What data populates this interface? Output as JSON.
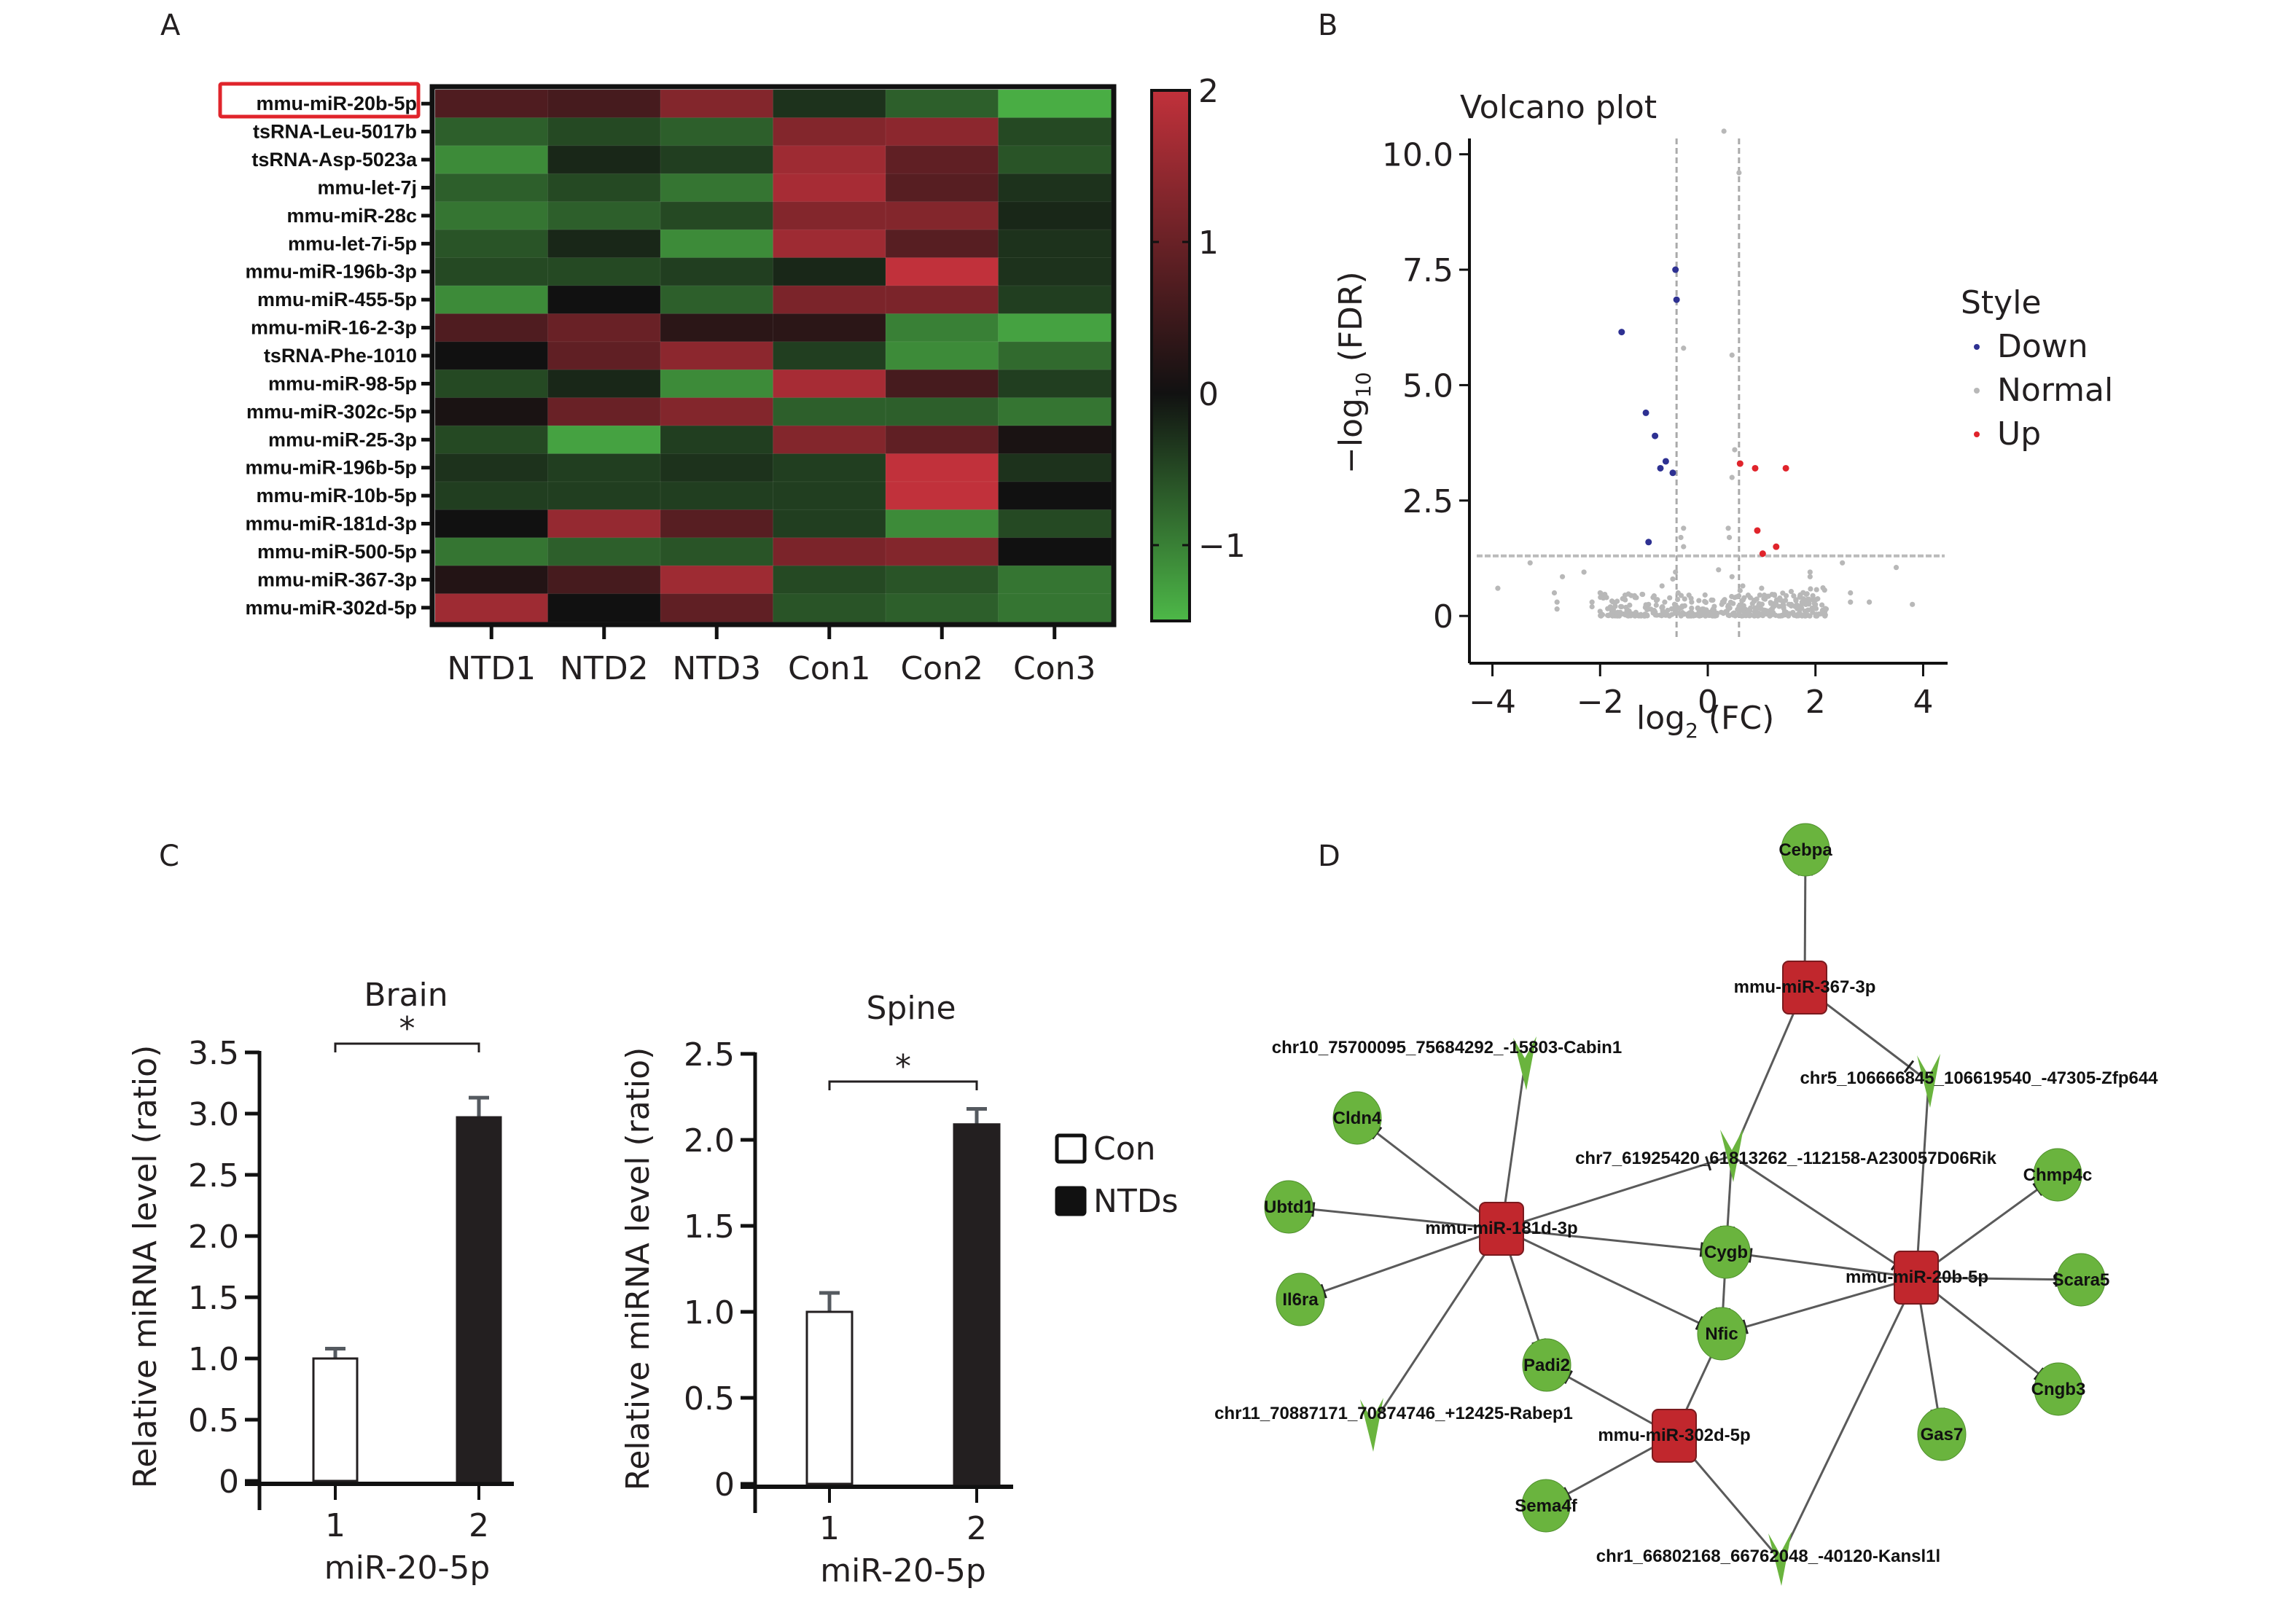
{
  "figure": {
    "panel_letters": [
      "A",
      "B",
      "C",
      "D"
    ]
  },
  "chart_data": [
    {
      "panel": "A",
      "type": "heatmap",
      "title": "",
      "columns": [
        "NTD1",
        "NTD2",
        "NTD3",
        "Con1",
        "Con2",
        "Con3"
      ],
      "rows": [
        "mmu-miR-20b-5p",
        "tsRNA-Leu-5017b",
        "tsRNA-Asp-5023a",
        "mmu-let-7j",
        "mmu-miR-28c",
        "mmu-let-7i-5p",
        "mmu-miR-196b-3p",
        "mmu-miR-455-5p",
        "mmu-miR-16-2-3p",
        "tsRNA-Phe-1010",
        "mmu-miR-98-5p",
        "mmu-miR-302c-5p",
        "mmu-miR-25-3p",
        "mmu-miR-196b-5p",
        "mmu-miR-10b-5p",
        "mmu-miR-181d-3p",
        "mmu-miR-500-5p",
        "mmu-miR-367-3p",
        "mmu-miR-302d-5p"
      ],
      "highlighted_row": "mmu-miR-20b-5p",
      "highlight_color": "#e0242b",
      "values": [
        [
          0.7,
          0.6,
          1.3,
          -0.3,
          -0.7,
          -1.4
        ],
        [
          -0.7,
          -0.5,
          -0.7,
          1.3,
          1.4,
          -0.5
        ],
        [
          -1.1,
          -0.2,
          -0.4,
          1.6,
          0.9,
          -0.6
        ],
        [
          -0.7,
          -0.5,
          -0.9,
          1.7,
          0.8,
          -0.3
        ],
        [
          -0.9,
          -0.7,
          -0.5,
          1.3,
          1.3,
          -0.2
        ],
        [
          -0.6,
          -0.2,
          -1.1,
          1.6,
          0.8,
          -0.3
        ],
        [
          -0.5,
          -0.5,
          -0.4,
          -0.2,
          2.1,
          -0.3
        ],
        [
          -1.1,
          0.0,
          -0.7,
          1.2,
          1.2,
          -0.4
        ],
        [
          0.7,
          1.0,
          0.3,
          0.3,
          -1.0,
          -1.3
        ],
        [
          0.0,
          0.9,
          1.4,
          -0.4,
          -1.1,
          -0.8
        ],
        [
          -0.5,
          -0.2,
          -1.1,
          1.7,
          0.6,
          -0.4
        ],
        [
          0.1,
          1.0,
          1.3,
          -0.7,
          -0.7,
          -0.9
        ],
        [
          -0.5,
          -1.3,
          -0.4,
          1.3,
          0.9,
          0.1
        ],
        [
          -0.3,
          -0.4,
          -0.3,
          -0.4,
          2.1,
          -0.3
        ],
        [
          -0.4,
          -0.4,
          -0.4,
          -0.4,
          2.1,
          0.0
        ],
        [
          0.0,
          1.5,
          0.8,
          -0.4,
          -1.1,
          -0.5
        ],
        [
          -0.9,
          -0.7,
          -0.6,
          1.2,
          1.3,
          0.0
        ],
        [
          0.2,
          0.6,
          1.6,
          -0.5,
          -0.6,
          -0.9
        ],
        [
          1.6,
          0.0,
          0.9,
          -0.6,
          -0.7,
          -0.9
        ]
      ],
      "colorbar": {
        "min": -1.5,
        "max": 2.0,
        "ticks": [
          2,
          1,
          0,
          -1
        ],
        "tick_labels": [
          "2",
          "1",
          "0",
          "−1"
        ],
        "low_color": "#4db848",
        "mid_color": "#111111",
        "high_color": "#c1313b"
      }
    },
    {
      "panel": "B",
      "type": "scatter",
      "title": "Volcano plot",
      "xlabel": "log₂ (FC)",
      "xlabel_main": "log",
      "xlabel_sub": "2",
      "xlabel_rest": " (FC)",
      "ylabel_prefix": "−log",
      "ylabel_sub": "10",
      "ylabel_rest": " (FDR)",
      "xlim": [
        -4.4,
        4.4
      ],
      "ylim": [
        -0.55,
        10.5
      ],
      "xticks": [
        -4,
        -2,
        0,
        2,
        4
      ],
      "xtick_labels": [
        "−4",
        "−2",
        "0",
        "2",
        "4"
      ],
      "yticks": [
        0,
        2.5,
        5.0,
        7.5,
        10.0
      ],
      "ytick_labels": [
        "0",
        "2.5",
        "5.0",
        "7.5",
        "10.0"
      ],
      "thresholds": {
        "x": [
          -0.58,
          0.58
        ],
        "y": 1.3
      },
      "legend": {
        "title": "Style",
        "position": "right",
        "entries": [
          {
            "label": "Down",
            "color": "#2e3192"
          },
          {
            "label": "Normal",
            "color": "#b8b8b8"
          },
          {
            "label": "Up",
            "color": "#e0242b"
          }
        ]
      },
      "series": [
        {
          "name": "Down",
          "color": "#2e3192",
          "points": [
            [
              -0.6,
              7.5
            ],
            [
              -0.58,
              6.85
            ],
            [
              -1.6,
              6.15
            ],
            [
              -1.15,
              4.4
            ],
            [
              -0.98,
              3.9
            ],
            [
              -0.78,
              3.35
            ],
            [
              -0.88,
              3.2
            ],
            [
              -0.65,
              3.1
            ],
            [
              -1.1,
              1.6
            ]
          ]
        },
        {
          "name": "Up",
          "color": "#e0242b",
          "points": [
            [
              0.6,
              3.3
            ],
            [
              0.88,
              3.2
            ],
            [
              1.45,
              3.2
            ],
            [
              0.92,
              1.85
            ],
            [
              1.27,
              1.5
            ],
            [
              1.02,
              1.35
            ]
          ]
        },
        {
          "name": "Normal",
          "color": "#b8b8b8",
          "points": [
            [
              0.3,
              10.5
            ],
            [
              0.58,
              9.6
            ],
            [
              -0.45,
              5.8
            ],
            [
              0.45,
              5.65
            ],
            [
              0.5,
              3.6
            ],
            [
              0.45,
              3.0
            ],
            [
              -0.45,
              1.9
            ],
            [
              -0.5,
              1.7
            ],
            [
              -0.45,
              1.5
            ],
            [
              0.38,
              1.9
            ],
            [
              0.4,
              1.7
            ],
            [
              -3.3,
              1.15
            ],
            [
              2.5,
              1.15
            ],
            [
              -2.3,
              0.95
            ],
            [
              -2.7,
              0.85
            ],
            [
              -3.9,
              0.6
            ],
            [
              -2.85,
              0.5
            ],
            [
              -2.8,
              0.3
            ],
            [
              -2.8,
              0.15
            ],
            [
              3.5,
              1.05
            ],
            [
              2.65,
              0.5
            ],
            [
              1.9,
              0.95
            ],
            [
              1.9,
              0.85
            ],
            [
              3.0,
              0.3
            ],
            [
              3.8,
              0.25
            ],
            [
              2.65,
              0.3
            ],
            [
              2.2,
              0.15
            ],
            [
              1.95,
              0.35
            ],
            [
              1.05,
              0.45
            ],
            [
              1.0,
              0.6
            ],
            [
              0.2,
              1.0
            ],
            [
              0.45,
              0.85
            ],
            [
              -0.6,
              0.95
            ],
            [
              -0.65,
              0.8
            ],
            [
              -0.85,
              0.65
            ],
            [
              -1.35,
              0.4
            ],
            [
              -1.95,
              0.4
            ],
            [
              -2.15,
              0.3
            ],
            [
              -2.15,
              0.2
            ],
            [
              -2.0,
              0.1
            ],
            [
              0.75,
              0.45
            ],
            [
              0.6,
              0.55
            ],
            [
              0.65,
              0.65
            ],
            [
              -0.35,
              0.45
            ],
            [
              -0.55,
              0.5
            ],
            [
              1.55,
              0.25
            ],
            [
              1.75,
              0.3
            ],
            [
              1.4,
              0.25
            ],
            [
              -1.6,
              0.2
            ],
            [
              -1.1,
              0.25
            ],
            [
              -0.8,
              0.3
            ],
            [
              0.3,
              0.3
            ],
            [
              0.5,
              0.4
            ],
            [
              -0.3,
              0.3
            ],
            [
              0.1,
              0.15
            ],
            [
              -0.1,
              0.15
            ]
          ],
          "dense_cloud": {
            "x_range": [
              -2.0,
              2.2
            ],
            "y_range": [
              0.0,
              0.35
            ],
            "count": 400
          }
        }
      ]
    },
    {
      "panel": "C-left",
      "type": "bar",
      "title": "Brain",
      "categories": [
        "1",
        "2"
      ],
      "xlabel": "miR-20-5p",
      "ylabel": "Relative miRNA level (ratio)",
      "ylim": [
        0,
        3.5
      ],
      "yticks": [
        0,
        0.5,
        1.0,
        1.5,
        2.0,
        2.5,
        3.0,
        3.5
      ],
      "ytick_labels": [
        "0",
        "0.5",
        "1.0",
        "1.5",
        "2.0",
        "2.5",
        "3.0",
        "3.5"
      ],
      "series": [
        {
          "name": "Con",
          "values": [
            1.0
          ],
          "errors": [
            0.08
          ],
          "fill": "#ffffff"
        },
        {
          "name": "NTDs",
          "values": [
            2.97
          ],
          "errors": [
            0.16
          ],
          "fill": "#231f20"
        }
      ],
      "significance": "*"
    },
    {
      "panel": "C-right",
      "type": "bar",
      "title": "Spine",
      "categories": [
        "1",
        "2"
      ],
      "xlabel": "miR-20-5p",
      "ylabel": "Relative miRNA level (ratio)",
      "ylim": [
        0,
        2.5
      ],
      "yticks": [
        0,
        0.5,
        1.0,
        1.5,
        2.0,
        2.5
      ],
      "ytick_labels": [
        "0",
        "0.5",
        "1.0",
        "1.5",
        "2.0",
        "2.5"
      ],
      "series": [
        {
          "name": "Con",
          "values": [
            1.0
          ],
          "errors": [
            0.11
          ],
          "fill": "#ffffff"
        },
        {
          "name": "NTDs",
          "values": [
            2.09
          ],
          "errors": [
            0.09
          ],
          "fill": "#231f20"
        }
      ],
      "significance": "*"
    }
  ],
  "bar_legend": {
    "entries": [
      {
        "label": "Con",
        "fill": "#ffffff"
      },
      {
        "label": "NTDs",
        "fill": "#111111"
      }
    ]
  },
  "network": {
    "panel": "D",
    "mirna_color": "#c1272d",
    "gene_color": "#6ab43e",
    "nodes": [
      {
        "id": "Cebpa",
        "label": "Cebpa",
        "type": "gene"
      },
      {
        "id": "miR367",
        "label": "mmu-miR-367-3p",
        "type": "mirna"
      },
      {
        "id": "Cabin1",
        "label": "chr10_75700095_75684292_-15803-Cabin1",
        "type": "lncrna"
      },
      {
        "id": "Zfp644",
        "label": "chr5_106666845_106619540_-47305-Zfp644",
        "type": "lncrna"
      },
      {
        "id": "Cldn4",
        "label": "Cldn4",
        "type": "gene"
      },
      {
        "id": "A230057",
        "label": "chr7_61925420_61813262_-112158-A230057D06Rik",
        "type": "lncrna"
      },
      {
        "id": "Chmp4c",
        "label": "Chmp4c",
        "type": "gene"
      },
      {
        "id": "Ubtd1",
        "label": "Ubtd1",
        "type": "gene"
      },
      {
        "id": "miR181",
        "label": "mmu-miR-181d-3p",
        "type": "mirna"
      },
      {
        "id": "Cygb",
        "label": "Cygb",
        "type": "gene"
      },
      {
        "id": "miR20b",
        "label": "mmu-miR-20b-5p",
        "type": "mirna"
      },
      {
        "id": "Scara5",
        "label": "Scara5",
        "type": "gene"
      },
      {
        "id": "Il6ra",
        "label": "Il6ra",
        "type": "gene"
      },
      {
        "id": "Nfic",
        "label": "Nfic",
        "type": "gene"
      },
      {
        "id": "Padi2",
        "label": "Padi2",
        "type": "gene"
      },
      {
        "id": "Cngb3",
        "label": "Cngb3",
        "type": "gene"
      },
      {
        "id": "Rabep1",
        "label": "chr11_70887171_70874746_+12425-Rabep1",
        "type": "lncrna"
      },
      {
        "id": "miR302",
        "label": "mmu-miR-302d-5p",
        "type": "mirna"
      },
      {
        "id": "Gas7",
        "label": "Gas7",
        "type": "gene"
      },
      {
        "id": "Sema4f",
        "label": "Sema4f",
        "type": "gene"
      },
      {
        "id": "Kansl1l",
        "label": "chr1_66802168_66762048_-40120-Kansl1l",
        "type": "lncrna"
      }
    ],
    "edges": [
      [
        "miR367",
        "Cebpa"
      ],
      [
        "miR367",
        "Zfp644"
      ],
      [
        "A230057",
        "miR367"
      ],
      [
        "Cabin1",
        "miR181"
      ],
      [
        "miR181",
        "Cldn4"
      ],
      [
        "miR181",
        "Ubtd1"
      ],
      [
        "miR181",
        "Il6ra"
      ],
      [
        "miR181",
        "A230057"
      ],
      [
        "miR181",
        "Cygb"
      ],
      [
        "miR181",
        "Nfic"
      ],
      [
        "miR181",
        "Padi2"
      ],
      [
        "Rabep1",
        "miR181"
      ],
      [
        "A230057",
        "Cygb"
      ],
      [
        "A230057",
        "miR20b"
      ],
      [
        "Zfp644",
        "miR20b"
      ],
      [
        "miR20b",
        "Cygb"
      ],
      [
        "miR20b",
        "Chmp4c"
      ],
      [
        "miR20b",
        "Scara5"
      ],
      [
        "miR20b",
        "Cngb3"
      ],
      [
        "miR20b",
        "Gas7"
      ],
      [
        "miR20b",
        "Nfic"
      ],
      [
        "Kansl1l",
        "miR20b"
      ],
      [
        "Cygb",
        "Nfic"
      ],
      [
        "Nfic",
        "miR302"
      ],
      [
        "miR302",
        "Padi2"
      ],
      [
        "miR302",
        "Sema4f"
      ],
      [
        "Kansl1l",
        "miR302"
      ]
    ]
  }
}
